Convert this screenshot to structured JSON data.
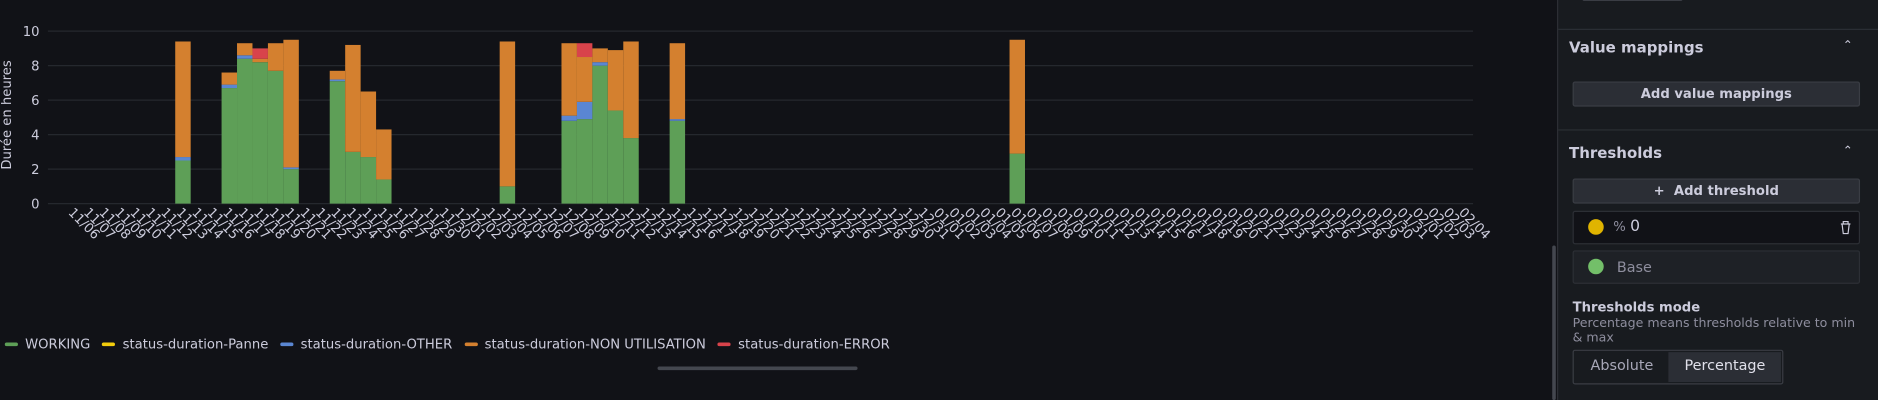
{
  "chart_data": {
    "type": "stacked-bar",
    "y_label": "Durée en heures",
    "ylim": [
      0,
      10
    ],
    "yticks": [
      0,
      2,
      4,
      6,
      8,
      10
    ],
    "grid": true,
    "categories": [
      "11/06",
      "11/07",
      "11/08",
      "11/09",
      "11/10",
      "11/11",
      "11/12",
      "11/13",
      "11/14",
      "11/15",
      "11/16",
      "11/17",
      "11/18",
      "11/19",
      "11/20",
      "11/21",
      "11/22",
      "11/23",
      "11/24",
      "11/25",
      "11/26",
      "11/27",
      "11/28",
      "11/29",
      "11/30",
      "12/01",
      "12/02",
      "12/03",
      "12/04",
      "12/05",
      "12/06",
      "12/07",
      "12/08",
      "12/09",
      "12/10",
      "12/11",
      "12/12",
      "12/13",
      "12/14",
      "12/15",
      "12/16",
      "12/17",
      "12/18",
      "12/19",
      "12/20",
      "12/21",
      "12/22",
      "12/23",
      "12/24",
      "12/25",
      "12/26",
      "12/27",
      "12/28",
      "12/29",
      "12/30",
      "12/31",
      "01/01",
      "01/02",
      "01/03",
      "01/04",
      "01/05",
      "01/06",
      "01/07",
      "01/08",
      "01/09",
      "01/10",
      "01/11",
      "01/12",
      "01/13",
      "01/14",
      "01/15",
      "01/16",
      "01/17",
      "01/18",
      "01/19",
      "01/20",
      "01/21",
      "01/22",
      "01/23",
      "01/24",
      "01/25",
      "01/26",
      "01/27",
      "01/28",
      "01/29",
      "01/30",
      "01/31",
      "02/01",
      "02/02",
      "02/03",
      "02/04"
    ],
    "series": [
      {
        "name": "WORKING",
        "color": "#5e9f57",
        "values": [
          null,
          null,
          null,
          null,
          null,
          null,
          null,
          2.5,
          null,
          null,
          6.7,
          8.4,
          8.2,
          7.7,
          2.0,
          null,
          null,
          7.1,
          3.0,
          2.7,
          1.4,
          null,
          null,
          null,
          null,
          null,
          null,
          null,
          1.0,
          null,
          null,
          null,
          4.8,
          4.9,
          8.0,
          5.4,
          3.8,
          null,
          null,
          4.8,
          null,
          null,
          null,
          null,
          null,
          null,
          null,
          null,
          null,
          null,
          null,
          null,
          null,
          null,
          null,
          null,
          null,
          null,
          null,
          null,
          null,
          2.9,
          null,
          null,
          null,
          null,
          null,
          null,
          null,
          null,
          null,
          null,
          null,
          null,
          null,
          null,
          null,
          null,
          null,
          null,
          null,
          null,
          null,
          null,
          null,
          null,
          null,
          null,
          null,
          null,
          null
        ]
      },
      {
        "name": "status-duration-Panne",
        "color": "#f2cc0c",
        "values": [
          null,
          null,
          null,
          null,
          null,
          null,
          null,
          null,
          null,
          null,
          null,
          null,
          null,
          null,
          null,
          null,
          null,
          null,
          null,
          null,
          null,
          null,
          null,
          null,
          null,
          null,
          null,
          null,
          null,
          null,
          null,
          null,
          null,
          null,
          null,
          null,
          null,
          null,
          null,
          null,
          null,
          null,
          null,
          null,
          null,
          null,
          null,
          null,
          null,
          null,
          null,
          null,
          null,
          null,
          null,
          null,
          null,
          null,
          null,
          null,
          null,
          null,
          null,
          null,
          null,
          null,
          null,
          null,
          null,
          null,
          null,
          null,
          null,
          null,
          null,
          null,
          null,
          null,
          null,
          null,
          null,
          null,
          null,
          null,
          null,
          null,
          null,
          null,
          null,
          null,
          null
        ]
      },
      {
        "name": "status-duration-OTHER",
        "color": "#5a86d2",
        "values": [
          null,
          null,
          null,
          null,
          null,
          null,
          null,
          0.2,
          null,
          null,
          0.2,
          0.2,
          null,
          null,
          0.1,
          null,
          null,
          0.1,
          null,
          null,
          null,
          null,
          null,
          null,
          null,
          null,
          null,
          null,
          null,
          null,
          null,
          null,
          0.3,
          1.0,
          0.2,
          null,
          null,
          null,
          null,
          0.1,
          null,
          null,
          null,
          null,
          null,
          null,
          null,
          null,
          null,
          null,
          null,
          null,
          null,
          null,
          null,
          null,
          null,
          null,
          null,
          null,
          null,
          null,
          null,
          null,
          null,
          null,
          null,
          null,
          null,
          null,
          null,
          null,
          null,
          null,
          null,
          null,
          null,
          null,
          null,
          null,
          null,
          null,
          null,
          null,
          null,
          null,
          null,
          null,
          null,
          null,
          null
        ]
      },
      {
        "name": "status-duration-NON UTILISATION",
        "color": "#d4802f",
        "values": [
          null,
          null,
          null,
          null,
          null,
          null,
          null,
          6.7,
          null,
          null,
          0.7,
          0.7,
          0.2,
          1.6,
          7.4,
          null,
          null,
          0.5,
          6.2,
          3.8,
          2.9,
          null,
          null,
          null,
          null,
          null,
          null,
          null,
          8.4,
          null,
          null,
          null,
          4.2,
          2.6,
          0.8,
          3.5,
          5.6,
          null,
          null,
          4.4,
          null,
          null,
          null,
          null,
          null,
          null,
          null,
          null,
          null,
          null,
          null,
          null,
          null,
          null,
          null,
          null,
          null,
          null,
          null,
          null,
          null,
          6.6,
          null,
          null,
          null,
          null,
          null,
          null,
          null,
          null,
          null,
          null,
          null,
          null,
          null,
          null,
          null,
          null,
          null,
          null,
          null,
          null,
          null,
          null,
          null,
          null,
          null,
          null,
          null,
          null,
          null
        ]
      },
      {
        "name": "status-duration-ERROR",
        "color": "#d8434b",
        "values": [
          null,
          null,
          null,
          null,
          null,
          null,
          null,
          null,
          null,
          null,
          null,
          null,
          0.6,
          null,
          null,
          null,
          null,
          null,
          null,
          null,
          null,
          null,
          null,
          null,
          null,
          null,
          null,
          null,
          null,
          null,
          null,
          null,
          null,
          0.8,
          null,
          null,
          null,
          null,
          null,
          null,
          null,
          null,
          null,
          null,
          null,
          null,
          null,
          null,
          null,
          null,
          null,
          null,
          null,
          null,
          null,
          null,
          null,
          null,
          null,
          null,
          null,
          null,
          null,
          null,
          null,
          null,
          null,
          null,
          null,
          null,
          null,
          null,
          null,
          null,
          null,
          null,
          null,
          null,
          null,
          null,
          null,
          null,
          null,
          null,
          null,
          null,
          null,
          null,
          null,
          null,
          null
        ]
      }
    ]
  },
  "panel": {
    "value_mappings": {
      "title": "Value mappings",
      "button": "Add value mappings"
    },
    "thresholds": {
      "title": "Thresholds",
      "button": "Add threshold",
      "unit": "%",
      "value": "0",
      "base": "Base",
      "mode_title": "Thresholds mode",
      "mode_description": "Percentage means thresholds relative to min & max",
      "options": [
        "Absolute",
        "Percentage"
      ]
    }
  }
}
